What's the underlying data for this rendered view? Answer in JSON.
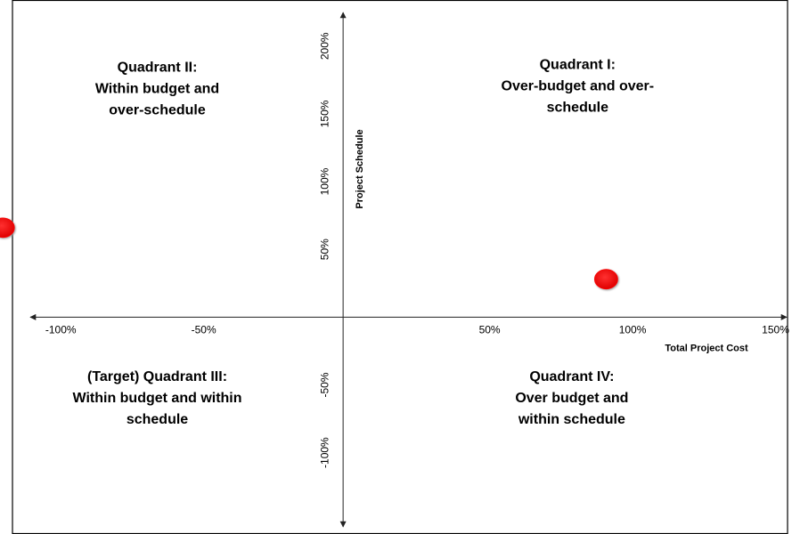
{
  "chart_data": {
    "type": "scatter",
    "x": [
      92,
      -119
    ],
    "values": [
      28,
      66
    ],
    "color": "#ff0000",
    "xlim": [
      -120,
      157
    ],
    "ylim": [
      -160,
      234
    ],
    "xticks": [
      {
        "value": -100,
        "label": "-100%"
      },
      {
        "value": -50,
        "label": "-50%"
      },
      {
        "value": 50,
        "label": "50%"
      },
      {
        "value": 100,
        "label": "100%"
      },
      {
        "value": 150,
        "label": "150%"
      }
    ],
    "yticks": [
      {
        "value": -100,
        "label": "-100%"
      },
      {
        "value": -50,
        "label": "-50%"
      },
      {
        "value": 50,
        "label": "50%"
      },
      {
        "value": 100,
        "label": "100%"
      },
      {
        "value": 150,
        "label": "150%"
      },
      {
        "value": 200,
        "label": "200%"
      }
    ],
    "x_label": "Total Project Cost",
    "y_label": "Project Schedule",
    "annotations": [
      {
        "lines": [
          "Quadrant I:",
          "Over-budget and over-",
          "schedule"
        ],
        "x": 82,
        "y": 170
      },
      {
        "lines": [
          "Quadrant II:",
          "Within budget and",
          "over-schedule"
        ],
        "x": -65,
        "y": 168
      },
      {
        "lines": [
          "(Target) Quadrant III:",
          "Within budget and within",
          "schedule"
        ],
        "x": -65,
        "y": -60
      },
      {
        "lines": [
          "Quadrant IV:",
          "Over budget and",
          "within schedule"
        ],
        "x": 80,
        "y": -60
      }
    ]
  }
}
